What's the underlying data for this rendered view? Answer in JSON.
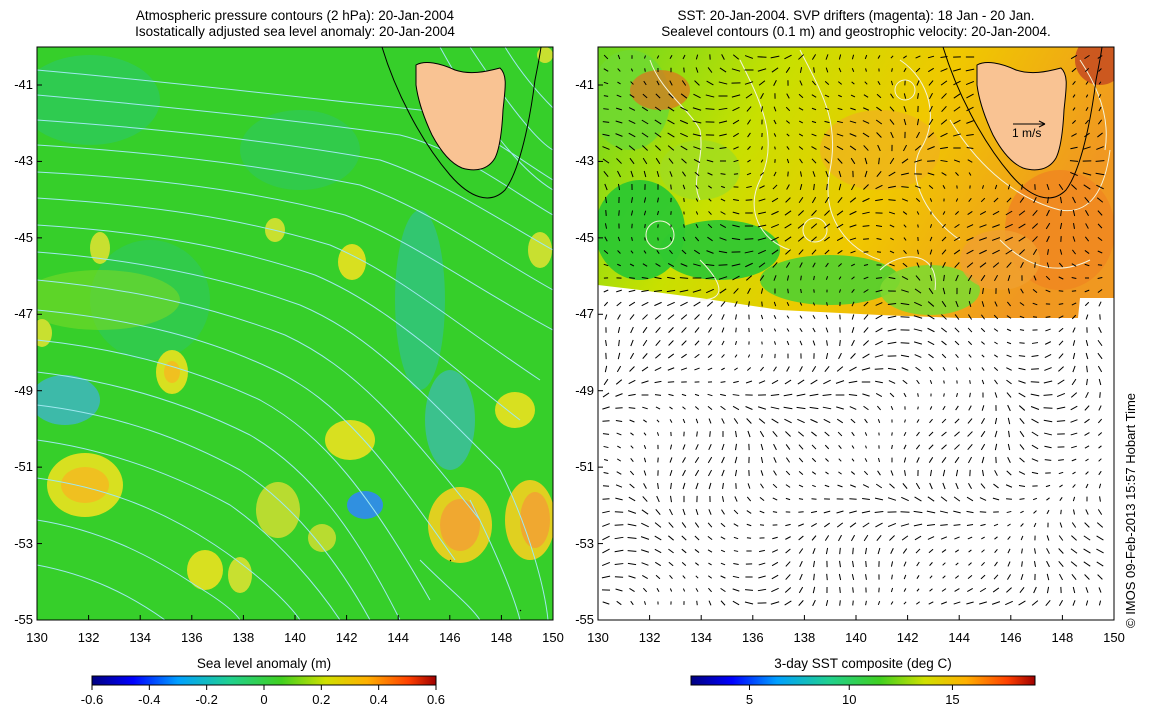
{
  "left_panel": {
    "title_line1": "Atmospheric pressure contours (2 hPa): 20-Jan-2004",
    "title_line2": "Isostatically adjusted sea level anomaly: 20-Jan-2004",
    "y_ticks": [
      "-41",
      "-43",
      "-45",
      "-47",
      "-49",
      "-51",
      "-53",
      "-55"
    ],
    "x_ticks": [
      "130",
      "132",
      "134",
      "136",
      "138",
      "140",
      "142",
      "144",
      "146",
      "148",
      "150"
    ],
    "colorbar_title": "Sea level anomaly (m)",
    "colorbar_ticks": [
      "-0.6",
      "-0.4",
      "-0.2",
      "0",
      "0.2",
      "0.4",
      "0.6"
    ]
  },
  "right_panel": {
    "title_line1": "SST: 20-Jan-2004. SVP drifters (magenta): 18 Jan - 20 Jan.",
    "title_line2": "Sealevel contours (0.1 m) and geostrophic velocity: 20-Jan-2004.",
    "y_ticks": [
      "-41",
      "-43",
      "-45",
      "-47",
      "-49",
      "-51",
      "-53",
      "-55"
    ],
    "x_ticks": [
      "130",
      "132",
      "134",
      "136",
      "138",
      "140",
      "142",
      "144",
      "146",
      "148",
      "150"
    ],
    "scale_label": "1 m/s",
    "colorbar_title": "3-day SST composite (deg C)",
    "colorbar_ticks": [
      "5",
      "10",
      "15"
    ]
  },
  "credit": "© IMOS 09-Feb-2013 15:57 Hobart Time",
  "colors": {
    "land": "#f9c393",
    "ocean_base": "#22cc22",
    "contour_left": "#8fe8f0",
    "contour_right": "#f0f0d0",
    "warm": "#f2a000",
    "cool": "#40b0e0"
  }
}
